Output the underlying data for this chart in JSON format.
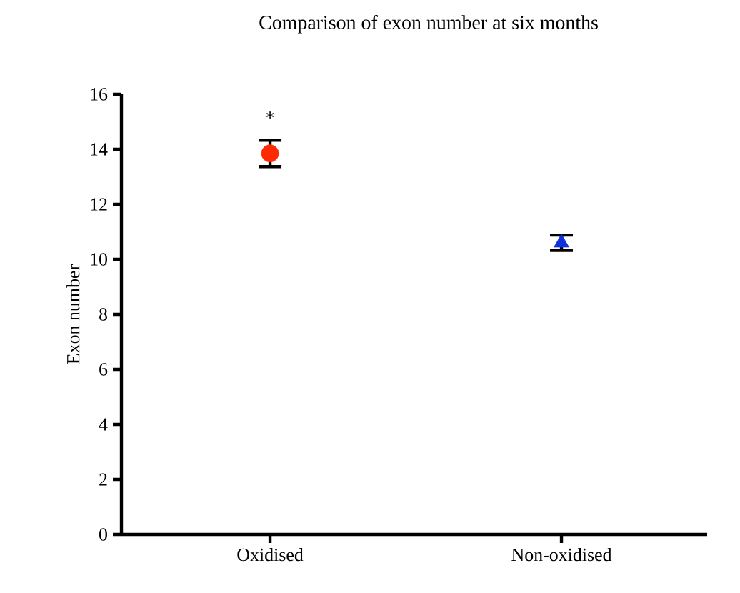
{
  "chart_data": {
    "type": "scatter",
    "title": "Comparison of exon number at six months",
    "ylabel": "Exon number",
    "categories": [
      "Oxidised",
      "Non-oxidised"
    ],
    "series": [
      {
        "color": "#ff2a00",
        "marker": "circle",
        "values": [
          13.85,
          null
        ],
        "errors": [
          0.48,
          null
        ]
      },
      {
        "color": "#1030e0",
        "marker": "triangle",
        "values": [
          null,
          10.6
        ],
        "errors": [
          null,
          0.28
        ]
      }
    ],
    "ylim": [
      0,
      16
    ],
    "yticks": [
      0,
      2,
      4,
      6,
      8,
      10,
      12,
      14,
      16
    ],
    "annotations": [
      "*"
    ],
    "grid": false
  }
}
